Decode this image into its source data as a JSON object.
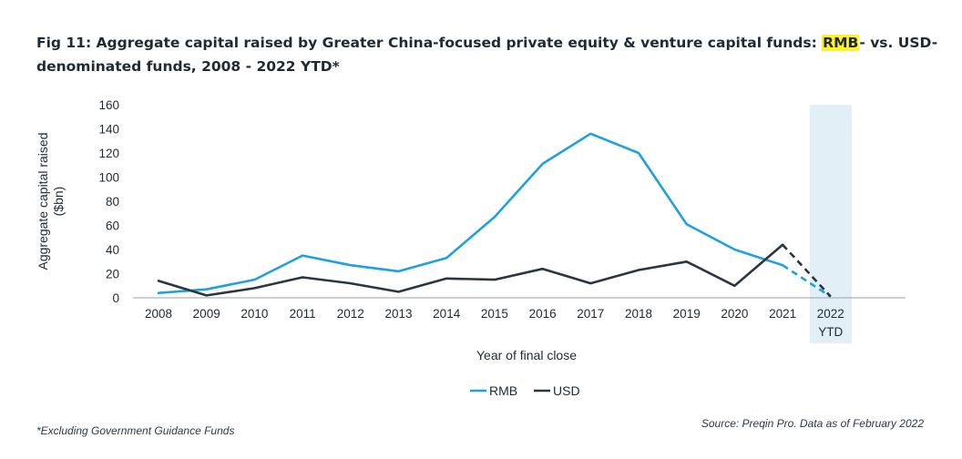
{
  "title": {
    "before": "Fig 11: Aggregate capital raised by Greater China-focused private equity & venture capital funds: ",
    "highlight": "RMB",
    "after": "- vs. USD-denominated funds, 2008 - 2022 YTD*"
  },
  "footnote": "*Excluding Government Guidance Funds",
  "source": "Source: Preqin Pro. Data as of February 2022",
  "colors": {
    "rmb": "#1ea1dc",
    "usd": "#2a3640",
    "ytd_band": "#e3eff6",
    "axis": "#9aa3a8"
  },
  "chart_data": {
    "type": "line",
    "xlabel": "Year of final close",
    "ylabel_line1": "Aggregate capital raised",
    "ylabel_line2": "($bn)",
    "ylim": [
      0,
      160
    ],
    "yticks": [
      0,
      20,
      40,
      60,
      80,
      100,
      120,
      140,
      160
    ],
    "categories": [
      "2008",
      "2009",
      "2010",
      "2011",
      "2012",
      "2013",
      "2014",
      "2015",
      "2016",
      "2017",
      "2018",
      "2019",
      "2020",
      "2021",
      "2022"
    ],
    "ytd_label": "YTD",
    "grid": false,
    "legend_position": "bottom-center",
    "series": [
      {
        "name": "RMB",
        "values": [
          4,
          7,
          15,
          35,
          27,
          22,
          33,
          67,
          111,
          136,
          120,
          61,
          40,
          27,
          1
        ]
      },
      {
        "name": "USD",
        "values": [
          14,
          2,
          8,
          17,
          12,
          5,
          16,
          15,
          24,
          12,
          23,
          30,
          10,
          44,
          1
        ]
      }
    ],
    "dashed_last_segment": true
  }
}
